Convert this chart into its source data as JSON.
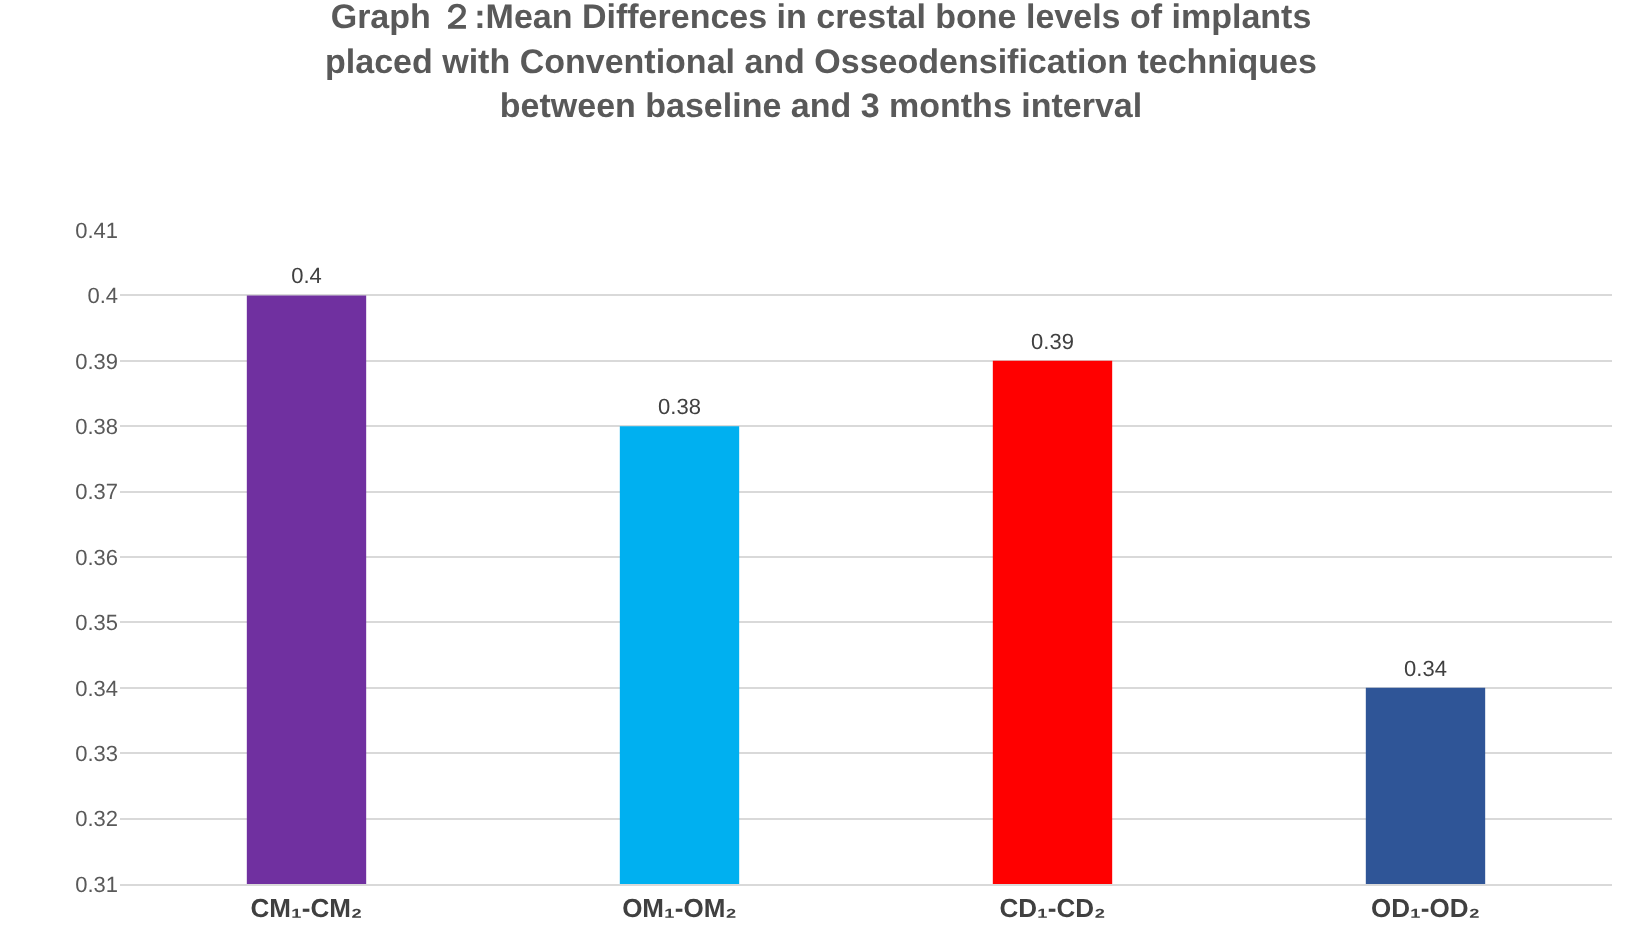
{
  "chart_data": {
    "type": "bar",
    "title": "Graph ２:Mean Differences in crestal bone levels of implants placed with Conventional and Osseodensification techniques between baseline and 3 months interval",
    "categories": [
      "CM₁-CM₂",
      "OM₁-OM₂",
      "CD₁-CD₂",
      "OD₁-OD₂"
    ],
    "values": [
      0.4,
      0.38,
      0.39,
      0.34
    ],
    "colors": [
      "#7030a0",
      "#00b0f0",
      "#ff0000",
      "#2f5597"
    ],
    "ylim": [
      0.31,
      0.41
    ],
    "yticks": [
      0.31,
      0.32,
      0.33,
      0.34,
      0.35,
      0.36,
      0.37,
      0.38,
      0.39,
      0.4,
      0.41
    ],
    "grid": "y",
    "data_labels": true,
    "legend": false
  }
}
